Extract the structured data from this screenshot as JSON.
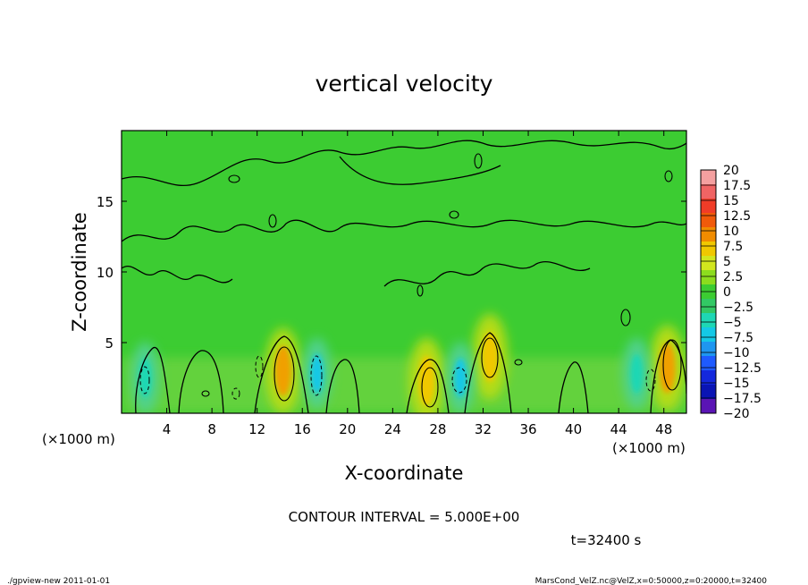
{
  "chart_data": {
    "type": "heatmap",
    "title": "vertical velocity",
    "xlabel": "X-coordinate",
    "ylabel": "Z-coordinate",
    "xunit_left": "(×1000 m)",
    "xunit_right": "(×1000 m)",
    "xticks": [
      4,
      8,
      12,
      16,
      20,
      24,
      28,
      32,
      36,
      40,
      44,
      48
    ],
    "yticks": [
      5,
      10,
      15
    ],
    "xlim": [
      0,
      50
    ],
    "ylim": [
      0,
      20
    ],
    "colorbar": {
      "labels": [
        "20",
        "17.5",
        "15",
        "12.5",
        "10",
        "7.5",
        "5",
        "2.5",
        "0",
        "−2.5",
        "−5",
        "−7.5",
        "−10",
        "−12.5",
        "−15",
        "−17.5",
        "−20"
      ],
      "colors": [
        "#f4a0a0",
        "#f06464",
        "#f03c28",
        "#f05a0a",
        "#f08c00",
        "#f0c800",
        "#d2e61e",
        "#8cdc1e",
        "#3ccc32",
        "#32c864",
        "#1ed7b4",
        "#14c8e6",
        "#1e96f0",
        "#1e5aff",
        "#1428dc",
        "#0a14b4",
        "#5a14b4"
      ]
    },
    "contour_interval_text": "CONTOUR INTERVAL = 5.000E+00",
    "time_text": "t=32400 s",
    "features": [
      {
        "type": "updraft",
        "x": 14.3,
        "z": 3.0,
        "w": 7
      },
      {
        "type": "updraft",
        "x": 27.0,
        "z": 2.3,
        "w": 6
      },
      {
        "type": "updraft",
        "x": 32.6,
        "z": 4.0,
        "w": 6
      },
      {
        "type": "updraft",
        "x": 48.3,
        "z": 3.2,
        "w": 7
      },
      {
        "type": "downdraft",
        "x": 2.1,
        "z": 2.5,
        "w": -4
      },
      {
        "type": "downdraft",
        "x": 17.3,
        "z": 2.8,
        "w": -6
      },
      {
        "type": "downdraft",
        "x": 30.0,
        "z": 2.5,
        "w": -5
      },
      {
        "type": "downdraft",
        "x": 45.6,
        "z": 2.8,
        "w": -4
      }
    ]
  },
  "footer": {
    "left": "./gpview-new   2011-01-01",
    "right": "MarsCond_VelZ.nc@VelZ,x=0:50000,z=0:20000,t=32400"
  }
}
